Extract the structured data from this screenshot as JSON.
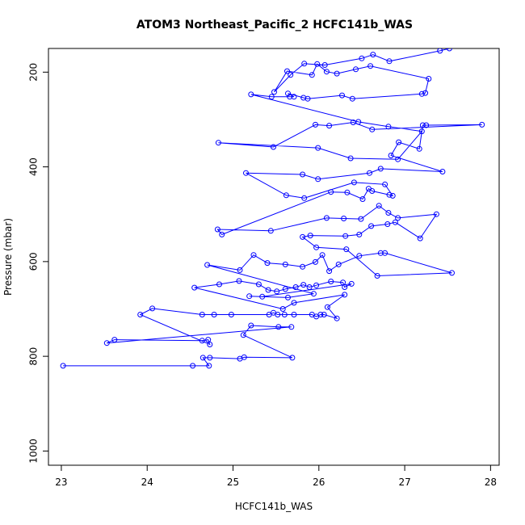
{
  "chart_data": {
    "type": "line",
    "title": "ATOM3 Northeast_Pacific_2 HCFC141b_WAS",
    "xlabel": "HCFC141b_WAS",
    "ylabel": "Pressure (mbar)",
    "xlim": [
      22.85,
      28.1
    ],
    "ylim": [
      1030,
      150
    ],
    "y_inverted": true,
    "x_ticks": [
      "23",
      "24",
      "25",
      "26",
      "27",
      "28"
    ],
    "y_ticks": [
      "200",
      "400",
      "600",
      "800",
      "1000"
    ],
    "grid": false,
    "legend": "none",
    "colors": {
      "series": "#0000ff",
      "axes": "#000000"
    },
    "series": [
      {
        "marker": "open-circle",
        "points": [
          [
            23.02,
            820
          ],
          [
            24.53,
            820
          ],
          [
            24.72,
            820
          ],
          [
            24.65,
            803
          ],
          [
            24.73,
            803
          ],
          [
            25.08,
            805
          ],
          [
            25.13,
            802
          ],
          [
            25.69,
            803
          ],
          [
            25.12,
            755
          ],
          [
            25.21,
            735
          ],
          [
            25.53,
            738
          ],
          [
            25.68,
            738
          ],
          [
            23.53,
            772
          ],
          [
            23.62,
            765
          ],
          [
            24.64,
            767
          ],
          [
            24.71,
            765
          ],
          [
            24.73,
            775
          ],
          [
            23.92,
            712
          ],
          [
            24.06,
            699
          ],
          [
            24.64,
            712
          ],
          [
            24.78,
            712
          ],
          [
            24.98,
            712
          ],
          [
            25.42,
            712
          ],
          [
            25.47,
            708
          ],
          [
            25.52,
            712
          ],
          [
            25.6,
            712
          ],
          [
            25.71,
            712
          ],
          [
            25.92,
            712
          ],
          [
            25.97,
            716
          ],
          [
            26.02,
            712
          ],
          [
            26.06,
            712
          ],
          [
            26.21,
            720
          ],
          [
            26.1,
            696
          ],
          [
            26.3,
            670
          ],
          [
            25.71,
            687
          ],
          [
            25.58,
            700
          ],
          [
            24.55,
            655
          ],
          [
            24.84,
            648
          ],
          [
            25.07,
            641
          ],
          [
            25.3,
            648
          ],
          [
            25.41,
            660
          ],
          [
            25.51,
            663
          ],
          [
            25.61,
            658
          ],
          [
            25.73,
            654
          ],
          [
            25.82,
            649
          ],
          [
            25.89,
            654
          ],
          [
            25.97,
            650
          ],
          [
            26.14,
            642
          ],
          [
            26.28,
            644
          ],
          [
            26.3,
            654
          ],
          [
            26.38,
            647
          ],
          [
            25.34,
            674
          ],
          [
            25.19,
            673
          ],
          [
            25.64,
            676
          ],
          [
            25.94,
            668
          ],
          [
            24.7,
            607
          ],
          [
            25.08,
            618
          ],
          [
            25.24,
            586
          ],
          [
            25.4,
            603
          ],
          [
            25.61,
            606
          ],
          [
            25.81,
            611
          ],
          [
            25.96,
            601
          ],
          [
            26.04,
            586
          ],
          [
            26.12,
            620
          ],
          [
            26.23,
            606
          ],
          [
            26.47,
            588
          ],
          [
            26.72,
            582
          ],
          [
            26.77,
            582
          ],
          [
            27.55,
            624
          ],
          [
            26.68,
            630
          ],
          [
            26.32,
            574
          ],
          [
            25.97,
            570
          ],
          [
            25.81,
            548
          ],
          [
            25.9,
            545
          ],
          [
            26.31,
            546
          ],
          [
            26.47,
            543
          ],
          [
            26.61,
            525
          ],
          [
            26.8,
            521
          ],
          [
            26.89,
            517
          ],
          [
            27.18,
            551
          ],
          [
            27.37,
            500
          ],
          [
            26.92,
            508
          ],
          [
            26.81,
            497
          ],
          [
            26.7,
            482
          ],
          [
            26.49,
            510
          ],
          [
            26.29,
            509
          ],
          [
            26.09,
            508
          ],
          [
            25.44,
            535
          ],
          [
            24.82,
            532
          ],
          [
            24.87,
            543
          ],
          [
            26.14,
            453
          ],
          [
            26.33,
            454
          ],
          [
            26.51,
            468
          ],
          [
            26.58,
            446
          ],
          [
            26.62,
            451
          ],
          [
            26.82,
            459
          ],
          [
            26.86,
            461
          ],
          [
            26.77,
            437
          ],
          [
            26.41,
            433
          ],
          [
            25.83,
            466
          ],
          [
            25.62,
            460
          ],
          [
            25.15,
            413
          ],
          [
            25.81,
            416
          ],
          [
            25.99,
            426
          ],
          [
            26.59,
            413
          ],
          [
            26.72,
            404
          ],
          [
            27.44,
            410
          ],
          [
            26.84,
            376
          ],
          [
            26.93,
            348
          ],
          [
            27.17,
            362
          ],
          [
            27.21,
            312
          ],
          [
            27.25,
            312
          ],
          [
            27.9,
            311
          ],
          [
            26.62,
            321
          ],
          [
            26.4,
            306
          ],
          [
            26.12,
            313
          ],
          [
            25.96,
            311
          ],
          [
            25.47,
            358
          ],
          [
            24.83,
            349
          ],
          [
            25.99,
            360
          ],
          [
            26.37,
            382
          ],
          [
            26.92,
            384
          ],
          [
            27.2,
            325
          ],
          [
            26.81,
            315
          ],
          [
            26.46,
            305
          ],
          [
            25.21,
            247
          ],
          [
            25.45,
            252
          ],
          [
            25.66,
            252
          ],
          [
            25.71,
            252
          ],
          [
            25.64,
            245
          ],
          [
            25.82,
            254
          ],
          [
            25.87,
            256
          ],
          [
            26.27,
            249
          ],
          [
            26.39,
            256
          ],
          [
            27.2,
            246
          ],
          [
            27.24,
            244
          ],
          [
            27.28,
            214
          ],
          [
            26.6,
            187
          ],
          [
            26.43,
            194
          ],
          [
            26.21,
            203
          ],
          [
            26.09,
            199
          ],
          [
            25.98,
            183
          ],
          [
            25.92,
            206
          ],
          [
            25.63,
            198
          ],
          [
            25.48,
            242
          ],
          [
            25.67,
            206
          ],
          [
            25.83,
            182
          ],
          [
            26.07,
            185
          ],
          [
            26.5,
            171
          ],
          [
            26.63,
            163
          ],
          [
            26.82,
            177
          ],
          [
            27.41,
            155
          ],
          [
            27.52,
            150
          ]
        ]
      }
    ]
  }
}
